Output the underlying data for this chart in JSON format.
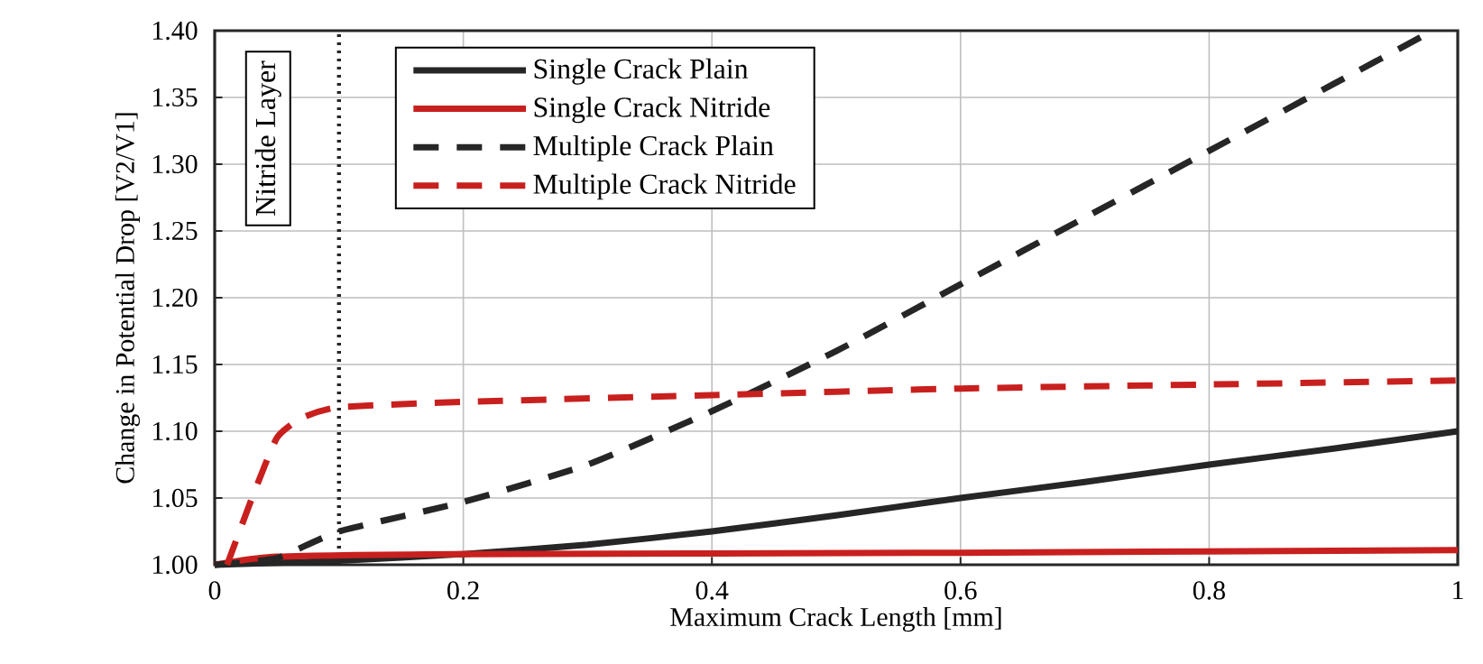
{
  "chart_data": {
    "type": "line",
    "xlabel": "Maximum Crack Length [mm]",
    "ylabel": "Change in Potential Drop [V2/V1]",
    "xlim": [
      0,
      1
    ],
    "ylim": [
      1.0,
      1.4
    ],
    "xticks": [
      0,
      0.2,
      0.4,
      0.6,
      0.8,
      1
    ],
    "yticks": [
      {
        "value": 1.0,
        "label": "1.00"
      },
      {
        "value": 1.05,
        "label": "1.05"
      },
      {
        "value": 1.1,
        "label": "1.10"
      },
      {
        "value": 1.15,
        "label": "1.15"
      },
      {
        "value": 1.2,
        "label": "1.20"
      },
      {
        "value": 1.25,
        "label": "1.25"
      },
      {
        "value": 1.3,
        "label": "1.30"
      },
      {
        "value": 1.35,
        "label": "1.35"
      },
      {
        "value": 1.4,
        "label": "1.40"
      }
    ],
    "grid": true,
    "legend": "top",
    "marker": "none",
    "ref_lines": [
      {
        "axis": "x",
        "value": 0.1,
        "label": "Nitride Layer",
        "color": "#262626",
        "line_style": "dotted"
      }
    ],
    "series": [
      {
        "name": "Single Crack Plain",
        "color": "#262626",
        "line_style": "solid",
        "x": [
          0,
          0.1,
          0.2,
          0.3,
          0.4,
          0.5,
          0.6,
          0.7,
          0.8,
          0.9,
          1
        ],
        "values": [
          1.0,
          1.003,
          1.008,
          1.015,
          1.025,
          1.037,
          1.05,
          1.062,
          1.075,
          1.087,
          1.1
        ]
      },
      {
        "name": "Single Crack Nitride",
        "color": "#c8201e",
        "line_style": "solid",
        "x": [
          0,
          0.05,
          0.2,
          0.6,
          1
        ],
        "values": [
          1.0,
          1.006,
          1.008,
          1.009,
          1.011
        ]
      },
      {
        "name": "Multiple Crack Plain",
        "color": "#262626",
        "line_style": "dashed",
        "x": [
          0,
          0.05,
          0.1,
          0.2,
          0.3,
          0.4,
          0.5,
          0.6,
          0.7,
          0.8,
          0.9,
          0.98
        ],
        "values": [
          1.0,
          1.005,
          1.025,
          1.047,
          1.075,
          1.115,
          1.16,
          1.21,
          1.26,
          1.31,
          1.36,
          1.4
        ]
      },
      {
        "name": "Multiple Crack Nitride",
        "color": "#c8201e",
        "line_style": "dashed",
        "x": [
          0.01,
          0.03,
          0.05,
          0.07,
          0.1,
          0.2,
          0.4,
          0.6,
          0.8,
          1
        ],
        "values": [
          1.0,
          1.05,
          1.095,
          1.11,
          1.118,
          1.122,
          1.127,
          1.132,
          1.135,
          1.138
        ]
      }
    ]
  }
}
